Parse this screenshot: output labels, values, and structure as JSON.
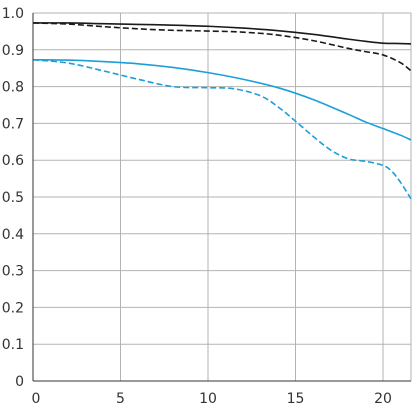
{
  "chart_data": {
    "type": "line",
    "title": "",
    "xlabel": "",
    "ylabel": "",
    "xlim": [
      0,
      21.6
    ],
    "ylim": [
      0,
      1
    ],
    "grid": true,
    "x_ticks": [
      0,
      5,
      10,
      15,
      20
    ],
    "x_tick_labels": [
      "0",
      "5",
      "10",
      "15",
      "20"
    ],
    "y_ticks": [
      0,
      0.1,
      0.2,
      0.3,
      0.4,
      0.5,
      0.6,
      0.7,
      0.8,
      0.9,
      1.0
    ],
    "y_tick_labels": [
      "0",
      "0.1",
      "0.2",
      "0.3",
      "0.4",
      "0.5",
      "0.6",
      "0.7",
      "0.8",
      "0.9",
      "1.0"
    ],
    "series": [
      {
        "color": "#1a1a1a",
        "style": "solid",
        "points": [
          [
            0,
            0.973
          ],
          [
            2,
            0.973
          ],
          [
            4,
            0.971
          ],
          [
            6,
            0.969
          ],
          [
            8,
            0.967
          ],
          [
            10,
            0.964
          ],
          [
            12,
            0.959
          ],
          [
            14,
            0.952
          ],
          [
            16,
            0.942
          ],
          [
            18,
            0.929
          ],
          [
            19,
            0.923
          ],
          [
            20,
            0.918
          ],
          [
            21,
            0.917
          ],
          [
            21.6,
            0.916
          ]
        ]
      },
      {
        "color": "#1a1a1a",
        "style": "dashed",
        "points": [
          [
            0,
            0.973
          ],
          [
            2,
            0.97
          ],
          [
            4,
            0.963
          ],
          [
            6,
            0.957
          ],
          [
            8,
            0.953
          ],
          [
            10,
            0.951
          ],
          [
            12,
            0.948
          ],
          [
            14,
            0.94
          ],
          [
            16,
            0.925
          ],
          [
            18,
            0.904
          ],
          [
            19,
            0.895
          ],
          [
            20,
            0.886
          ],
          [
            21,
            0.865
          ],
          [
            21.6,
            0.843
          ]
        ]
      },
      {
        "color": "#1a9fd9",
        "style": "solid",
        "points": [
          [
            0,
            0.873
          ],
          [
            2,
            0.872
          ],
          [
            4,
            0.868
          ],
          [
            6,
            0.862
          ],
          [
            8,
            0.852
          ],
          [
            10,
            0.838
          ],
          [
            12,
            0.82
          ],
          [
            14,
            0.797
          ],
          [
            16,
            0.765
          ],
          [
            18,
            0.725
          ],
          [
            19,
            0.704
          ],
          [
            20,
            0.686
          ],
          [
            21,
            0.668
          ],
          [
            21.6,
            0.655
          ]
        ]
      },
      {
        "color": "#1a9fd9",
        "style": "dashed",
        "points": [
          [
            0,
            0.873
          ],
          [
            2,
            0.864
          ],
          [
            4,
            0.843
          ],
          [
            6,
            0.82
          ],
          [
            8,
            0.8
          ],
          [
            10,
            0.797
          ],
          [
            11.5,
            0.794
          ],
          [
            13,
            0.775
          ],
          [
            14,
            0.745
          ],
          [
            15,
            0.706
          ],
          [
            16,
            0.665
          ],
          [
            17,
            0.628
          ],
          [
            18,
            0.604
          ],
          [
            19,
            0.597
          ],
          [
            20,
            0.586
          ],
          [
            20.5,
            0.57
          ],
          [
            21,
            0.54
          ],
          [
            21.6,
            0.495
          ]
        ]
      }
    ]
  }
}
